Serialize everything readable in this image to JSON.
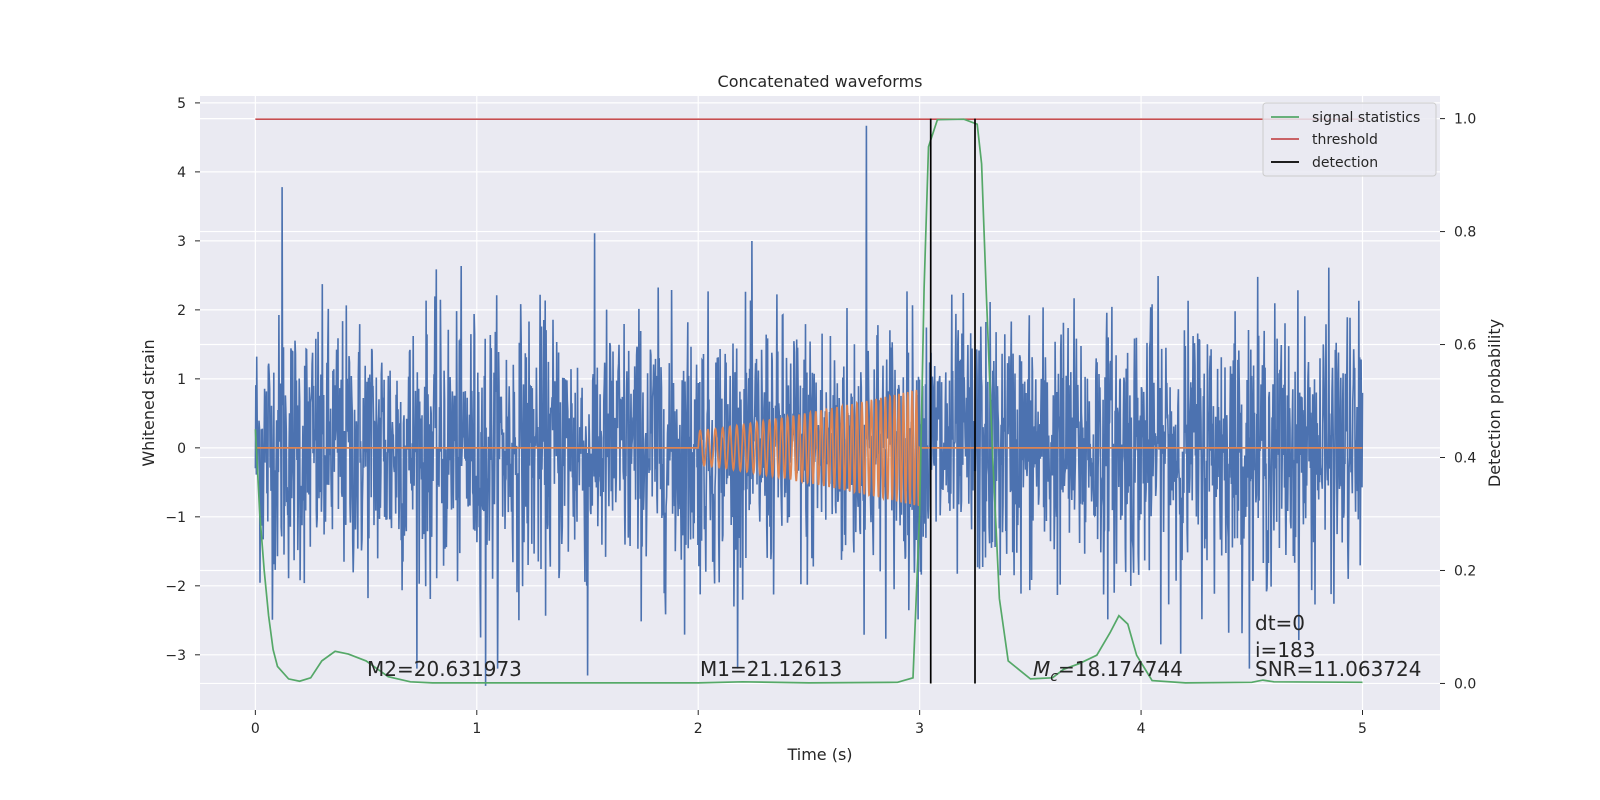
{
  "chart_data": {
    "type": "line",
    "title": "Concatenated waveforms",
    "xlabel": "Time (s)",
    "ylabel": "Whitened strain",
    "y2label": "Detection probability",
    "xlim": [
      -0.25,
      5.35
    ],
    "ylim": [
      -3.8,
      5.1
    ],
    "y2lim": [
      -0.047,
      1.04
    ],
    "xticks": [
      0,
      1,
      2,
      3,
      4,
      5
    ],
    "yticks": [
      -3,
      -2,
      -1,
      0,
      1,
      2,
      3,
      4,
      5
    ],
    "y2ticks": [
      0.0,
      0.2,
      0.4,
      0.6,
      0.8,
      1.0
    ],
    "xtick_labels": [
      "0",
      "1",
      "2",
      "3",
      "4",
      "5"
    ],
    "ytick_labels": [
      "−3",
      "−2",
      "−1",
      "0",
      "1",
      "2",
      "3",
      "4",
      "5"
    ],
    "y2tick_labels": [
      "0.0",
      "0.2",
      "0.4",
      "0.6",
      "0.8",
      "1.0"
    ],
    "grid": true,
    "legend_position": "top-right",
    "legend": [
      {
        "label": "signal statistics",
        "color": "#55a868"
      },
      {
        "label": "threshold",
        "color": "#c44e52"
      },
      {
        "label": "detection",
        "color": "#000000"
      }
    ],
    "colors": {
      "strain": "#4c72b0",
      "template": "#dd8452",
      "signal_statistics": "#55a868",
      "threshold": "#c44e52",
      "detection": "#000000",
      "background": "#eaeaf2"
    },
    "strain": {
      "x_start": 0,
      "x_end": 5,
      "typical_range": [
        -2.5,
        2.5
      ],
      "peak_values": [
        {
          "x": 0.12,
          "y": 3.78
        },
        {
          "x": 2.76,
          "y": 4.67
        },
        {
          "x": 1.04,
          "y": -3.45
        },
        {
          "x": 1.5,
          "y": -3.3
        }
      ]
    },
    "template": {
      "x_start": 2.0,
      "x_end": 3.0,
      "start_amplitude": 0.25,
      "end_amplitude": 0.85,
      "flat_value": 0
    },
    "threshold": {
      "value": 0.999,
      "x_start": 0,
      "x_end": 5
    },
    "detections": [
      3.05,
      3.25
    ],
    "signal_statistics": [
      [
        0,
        0.45
      ],
      [
        0.02,
        0.3
      ],
      [
        0.04,
        0.2
      ],
      [
        0.06,
        0.12
      ],
      [
        0.08,
        0.06
      ],
      [
        0.1,
        0.03
      ],
      [
        0.15,
        0.008
      ],
      [
        0.2,
        0.004
      ],
      [
        0.25,
        0.01
      ],
      [
        0.3,
        0.04
      ],
      [
        0.36,
        0.057
      ],
      [
        0.42,
        0.052
      ],
      [
        0.5,
        0.04
      ],
      [
        0.6,
        0.012
      ],
      [
        0.7,
        0.003
      ],
      [
        0.8,
        0.001
      ],
      [
        1.0,
        0.001
      ],
      [
        1.5,
        0.001
      ],
      [
        2.0,
        0.001
      ],
      [
        2.2,
        0.003
      ],
      [
        2.5,
        0.001
      ],
      [
        2.9,
        0.002
      ],
      [
        2.97,
        0.01
      ],
      [
        3.0,
        0.3
      ],
      [
        3.02,
        0.7
      ],
      [
        3.04,
        0.95
      ],
      [
        3.08,
        0.998
      ],
      [
        3.2,
        0.999
      ],
      [
        3.26,
        0.99
      ],
      [
        3.28,
        0.92
      ],
      [
        3.3,
        0.7
      ],
      [
        3.33,
        0.4
      ],
      [
        3.36,
        0.15
      ],
      [
        3.4,
        0.04
      ],
      [
        3.5,
        0.008
      ],
      [
        3.6,
        0.01
      ],
      [
        3.65,
        0.025
      ],
      [
        3.72,
        0.035
      ],
      [
        3.8,
        0.05
      ],
      [
        3.86,
        0.09
      ],
      [
        3.9,
        0.12
      ],
      [
        3.94,
        0.105
      ],
      [
        3.98,
        0.05
      ],
      [
        4.05,
        0.005
      ],
      [
        4.2,
        0.001
      ],
      [
        4.5,
        0.002
      ],
      [
        4.55,
        0.006
      ],
      [
        4.6,
        0.003
      ],
      [
        5.0,
        0.002
      ]
    ],
    "annotations": {
      "m2": "M2=20.631973",
      "m1": "M1=21.12613",
      "mc_symbol": "M",
      "mc_sub": "c",
      "mc_value": "=18.174744",
      "dt": "dt=0",
      "i": "i=183",
      "snr": "SNR=11.063724"
    }
  }
}
